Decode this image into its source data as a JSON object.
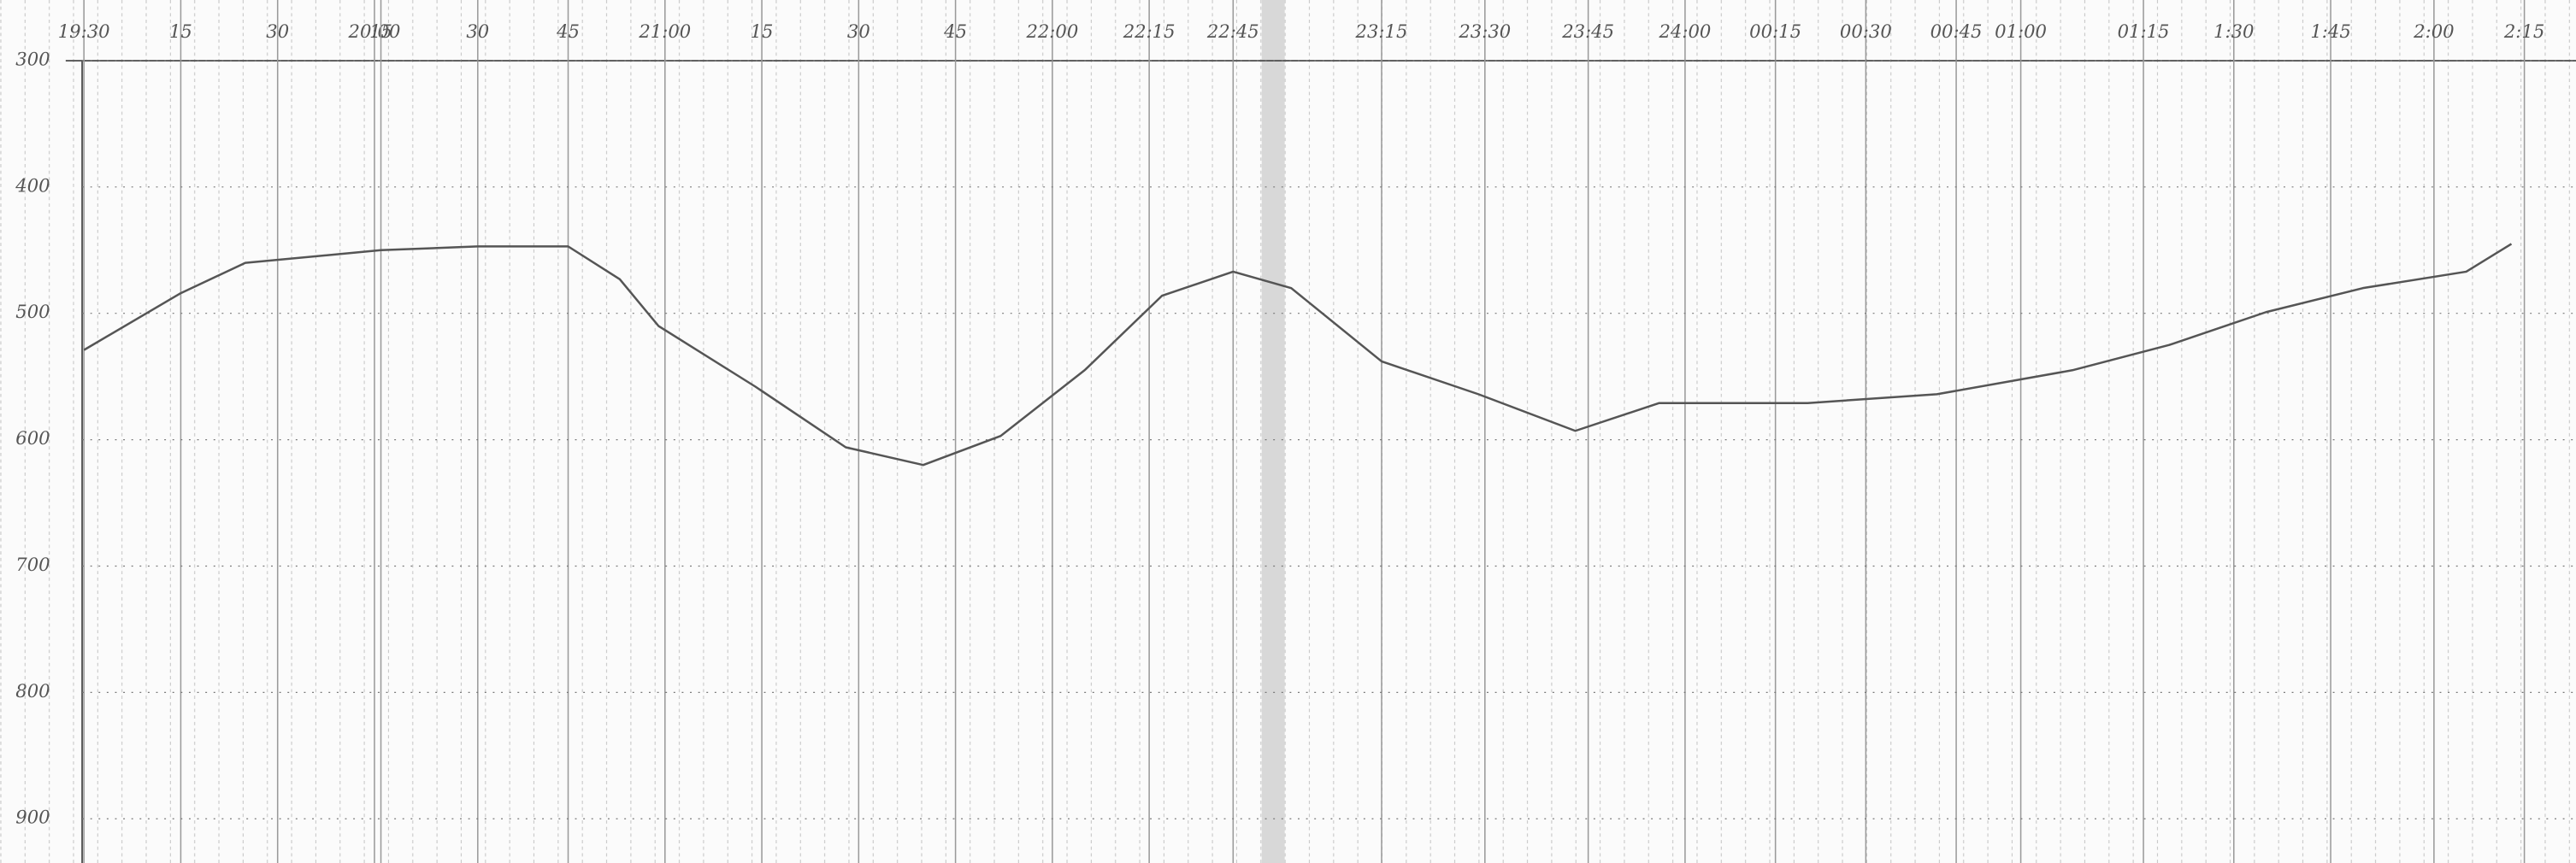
{
  "chart_data": {
    "type": "line",
    "xlim": [
      -13,
      386
    ],
    "ylim": [
      252,
      935
    ],
    "y_inverted": true,
    "grid": true,
    "xticks": [
      {
        "value": 0,
        "label": "19:30"
      },
      15,
      30,
      {
        "value": 45,
        "label": "20:00"
      },
      {
        "value": 46,
        "label": "15"
      },
      {
        "value": 61,
        "label": "30"
      },
      {
        "value": 75,
        "label": "45"
      },
      {
        "value": 90,
        "label": "21:00"
      },
      {
        "value": 105,
        "label": "15"
      },
      {
        "value": 120,
        "label": "30"
      },
      {
        "value": 135,
        "label": "45"
      },
      {
        "value": 150,
        "label": "22:00"
      },
      {
        "value": 165,
        "label": "22:15"
      },
      {
        "value": 178,
        "label": "22:45"
      },
      {
        "value": 201,
        "label": "23:15"
      },
      {
        "value": 217,
        "label": "23:30"
      },
      {
        "value": 233,
        "label": "23:45"
      },
      {
        "value": 248,
        "label": "24:00"
      },
      {
        "value": 262,
        "label": "00:15"
      },
      {
        "value": 276,
        "label": "00:30"
      },
      {
        "value": 290,
        "label": "00:45"
      },
      {
        "value": 300,
        "label": "01:00"
      },
      {
        "value": 319,
        "label": "01:15"
      },
      {
        "value": 333,
        "label": "1:30"
      },
      {
        "value": 348,
        "label": "1:45"
      },
      {
        "value": 364,
        "label": "2:00"
      },
      {
        "value": 378,
        "label": "2:15"
      }
    ],
    "yticks": [
      300,
      400,
      500,
      600,
      700,
      800,
      900
    ],
    "series": [
      {
        "color": "#555555",
        "x": [
          0,
          15,
          25,
          46,
          61,
          75,
          83,
          89,
          104,
          118,
          130,
          142,
          155,
          167,
          178,
          187,
          201,
          216,
          231,
          244,
          267,
          287,
          308,
          323,
          338,
          353,
          369,
          376
        ],
        "values": [
          529,
          484,
          460,
          450,
          447,
          447,
          473,
          510,
          558,
          606,
          620,
          597,
          545,
          486,
          467,
          480,
          538,
          564,
          593,
          571,
          571,
          564,
          545,
          525,
          499,
          480,
          467,
          445
        ]
      }
    ]
  }
}
